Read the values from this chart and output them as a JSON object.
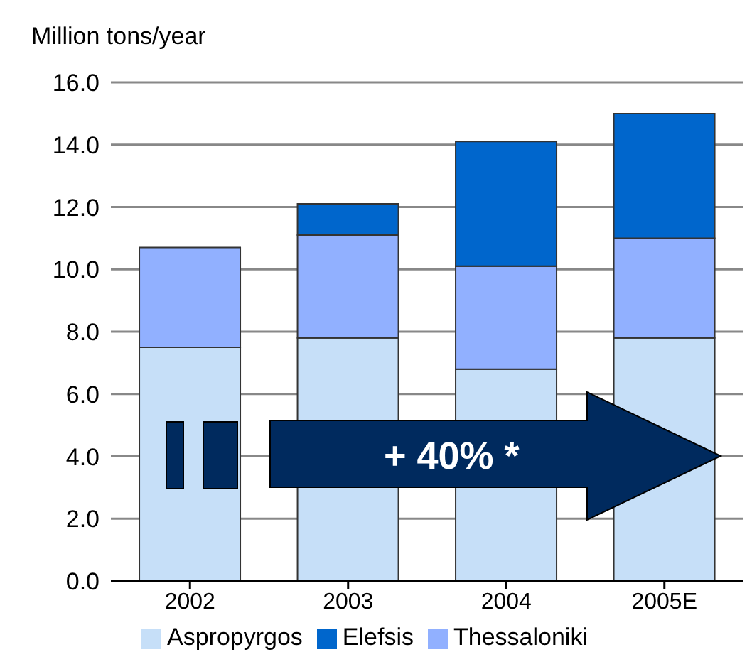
{
  "chart_data": {
    "type": "bar",
    "stacked": true,
    "ylabel": "Million tons/year",
    "categories": [
      "2002",
      "2003",
      "2004",
      "2005E"
    ],
    "series": [
      {
        "name": "Aspropyrgos",
        "color": "#c6dff8",
        "values": [
          7.5,
          7.8,
          6.8,
          7.8
        ]
      },
      {
        "name": "Thessaloniki",
        "color": "#91b0ff",
        "values": [
          3.2,
          3.3,
          3.3,
          3.2
        ]
      },
      {
        "name": "Elefsis",
        "color": "#0066cc",
        "values": [
          null,
          1.0,
          4.0,
          4.0
        ]
      }
    ],
    "ylim": [
      0,
      16
    ],
    "yticks": [
      {
        "value": 0,
        "label": "0.0"
      },
      {
        "value": 2,
        "label": "2.0"
      },
      {
        "value": 4,
        "label": "4.0"
      },
      {
        "value": 6,
        "label": "6.0"
      },
      {
        "value": 8,
        "label": "8.0"
      },
      {
        "value": 10,
        "label": "10.0"
      },
      {
        "value": 12,
        "label": "12.0"
      },
      {
        "value": 14,
        "label": "14.0"
      },
      {
        "value": 16,
        "label": "16.0"
      }
    ],
    "grid": "y",
    "legend": "bottom",
    "annotations": [
      "+ 40% *"
    ]
  }
}
